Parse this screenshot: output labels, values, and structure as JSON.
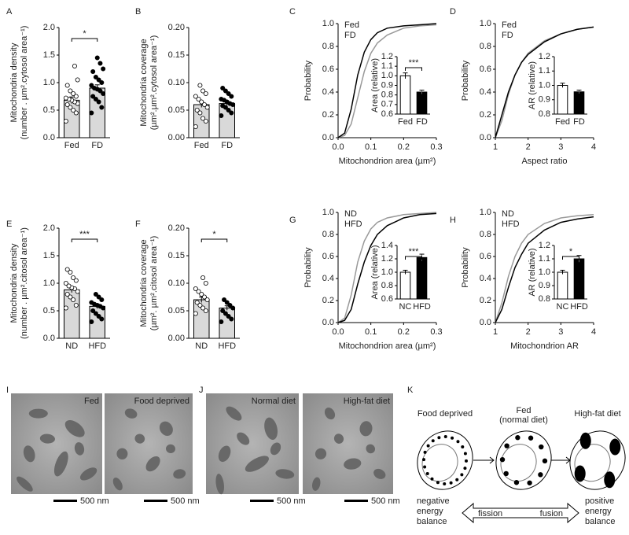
{
  "panel_labels": [
    "A",
    "B",
    "C",
    "D",
    "E",
    "F",
    "G",
    "H",
    "I",
    "J",
    "K"
  ],
  "chart_data": [
    {
      "type": "bar",
      "ylabel": [
        "Mitochondria density",
        "(number . µm².cytosol area⁻¹)"
      ],
      "categories": [
        "Fed",
        "FD"
      ],
      "values": [
        0.68,
        0.9
      ],
      "errors": [
        0.06,
        0.06
      ],
      "colors": [
        "#d9d9d9",
        "#d9d9d9"
      ],
      "point_fills": [
        "#ffffff",
        "#000000"
      ],
      "points": [
        [
          0.3,
          0.45,
          0.5,
          0.55,
          0.6,
          0.62,
          0.65,
          0.68,
          0.7,
          0.72,
          0.75,
          0.8,
          0.85,
          0.95,
          1.05,
          1.3
        ],
        [
          0.45,
          0.55,
          0.65,
          0.7,
          0.75,
          0.8,
          0.85,
          0.88,
          0.9,
          0.95,
          1.0,
          1.05,
          1.1,
          1.2,
          1.25,
          1.35,
          1.45
        ]
      ],
      "ylim": [
        0,
        2
      ],
      "yticks": [
        {
          "value": 0,
          "label": "0.0"
        },
        0.5,
        {
          "value": 1,
          "label": "1.0"
        },
        1.5,
        {
          "value": 2,
          "label": "2.0"
        }
      ],
      "annotation": "*"
    },
    {
      "type": "bar",
      "ylabel": [
        "Mitochondria coverage",
        "(µm².µm².cytosol area⁻¹)"
      ],
      "categories": [
        "Fed",
        "FD"
      ],
      "values": [
        0.06,
        0.062
      ],
      "errors": [
        0.005,
        0.003
      ],
      "colors": [
        "#d9d9d9",
        "#d9d9d9"
      ],
      "point_fills": [
        "#ffffff",
        "#000000"
      ],
      "points": [
        [
          0.02,
          0.03,
          0.035,
          0.045,
          0.05,
          0.055,
          0.06,
          0.065,
          0.07,
          0.075,
          0.08,
          0.085,
          0.095
        ],
        [
          0.04,
          0.045,
          0.05,
          0.055,
          0.058,
          0.06,
          0.062,
          0.065,
          0.068,
          0.07,
          0.075,
          0.08,
          0.085,
          0.09
        ]
      ],
      "ylim": [
        0,
        0.2
      ],
      "yticks": [
        {
          "value": 0,
          "label": "0.00"
        },
        0.05,
        {
          "value": 0.1,
          "label": "0.10"
        },
        0.15,
        {
          "value": 0.2,
          "label": "0.20"
        }
      ]
    },
    {
      "type": "line",
      "ylabel": [
        "Probability"
      ],
      "xlabel": "Mitochondrion area (µm²)",
      "x": [
        0,
        0.02,
        0.04,
        0.06,
        0.08,
        0.1,
        0.12,
        0.15,
        0.2,
        0.25,
        0.3
      ],
      "series": [
        {
          "name": "Fed",
          "color": "#999999",
          "values": [
            0,
            0.02,
            0.12,
            0.35,
            0.58,
            0.74,
            0.83,
            0.9,
            0.96,
            0.98,
            0.99
          ]
        },
        {
          "name": "FD",
          "color": "#000000",
          "values": [
            0,
            0.04,
            0.25,
            0.55,
            0.75,
            0.86,
            0.92,
            0.96,
            0.98,
            0.99,
            1.0
          ]
        }
      ],
      "xlim": [
        0,
        0.3
      ],
      "xticks": [
        {
          "value": 0,
          "label": "0.0"
        },
        0.1,
        0.2,
        0.3
      ],
      "ylim": [
        0,
        1
      ],
      "yticks": [
        {
          "value": 0,
          "label": "0.0"
        },
        0.2,
        0.4,
        0.6,
        0.8,
        {
          "value": 1,
          "label": "1.0"
        }
      ],
      "inset": {
        "type": "bar",
        "ylabel": [
          "Area (relative)"
        ],
        "categories": [
          "Fed",
          "FD"
        ],
        "values": [
          1.0,
          0.83
        ],
        "errors": [
          0.03,
          0.02
        ],
        "colors": [
          "#ffffff",
          "#000000"
        ],
        "ylim": [
          0.6,
          1.2
        ],
        "yticks": [
          0.6,
          0.7,
          0.8,
          0.9,
          {
            "value": 1,
            "label": "1.0"
          },
          1.1,
          1.2
        ],
        "annotation": "***"
      }
    },
    {
      "type": "line",
      "ylabel": [
        "Probability"
      ],
      "xlabel": "Aspect ratio",
      "x": [
        1,
        1.2,
        1.4,
        1.6,
        1.8,
        2,
        2.5,
        3,
        3.5,
        4
      ],
      "series": [
        {
          "name": "Fed",
          "color": "#999999",
          "values": [
            0,
            0.15,
            0.38,
            0.55,
            0.66,
            0.74,
            0.85,
            0.91,
            0.95,
            0.97
          ]
        },
        {
          "name": "FD",
          "color": "#000000",
          "values": [
            0,
            0.2,
            0.4,
            0.55,
            0.66,
            0.73,
            0.84,
            0.91,
            0.95,
            0.97
          ]
        }
      ],
      "xlim": [
        1,
        4
      ],
      "xticks": [
        1,
        2,
        3,
        4
      ],
      "ylim": [
        0,
        1
      ],
      "yticks": [
        {
          "value": 0,
          "label": "0.0"
        },
        0.2,
        0.4,
        0.6,
        0.8,
        {
          "value": 1,
          "label": "1.0"
        }
      ],
      "inset": {
        "type": "bar",
        "ylabel": [
          "AR (relative)"
        ],
        "categories": [
          "Fed",
          "FD"
        ],
        "values": [
          1.0,
          0.955
        ],
        "errors": [
          0.015,
          0.012
        ],
        "colors": [
          "#ffffff",
          "#000000"
        ],
        "ylim": [
          0.8,
          1.2
        ],
        "yticks": [
          0.8,
          0.9,
          {
            "value": 1,
            "label": "1.0"
          },
          1.1,
          1.2
        ]
      }
    },
    {
      "type": "bar",
      "ylabel": [
        "Mitochondria density",
        "(number . µm².citosol area⁻¹)"
      ],
      "categories": [
        "ND",
        "HFD"
      ],
      "values": [
        0.88,
        0.58
      ],
      "errors": [
        0.05,
        0.04
      ],
      "colors": [
        "#d9d9d9",
        "#d9d9d9"
      ],
      "point_fills": [
        "#ffffff",
        "#000000"
      ],
      "points": [
        [
          0.55,
          0.6,
          0.7,
          0.75,
          0.8,
          0.85,
          0.9,
          0.92,
          0.95,
          1.0,
          1.05,
          1.1,
          1.2,
          1.25
        ],
        [
          0.3,
          0.35,
          0.4,
          0.45,
          0.5,
          0.55,
          0.58,
          0.6,
          0.62,
          0.65,
          0.7,
          0.75,
          0.8
        ]
      ],
      "ylim": [
        0,
        2
      ],
      "yticks": [
        {
          "value": 0,
          "label": "0.0"
        },
        0.5,
        {
          "value": 1,
          "label": "1.0"
        },
        1.5,
        {
          "value": 2,
          "label": "2.0"
        }
      ],
      "annotation": "***"
    },
    {
      "type": "bar",
      "ylabel": [
        "Mitochondria coverage",
        "(µm². µm².citosol area⁻¹)"
      ],
      "categories": [
        "ND",
        "HFD"
      ],
      "values": [
        0.07,
        0.055
      ],
      "errors": [
        0.005,
        0.004
      ],
      "colors": [
        "#d9d9d9",
        "#d9d9d9"
      ],
      "point_fills": [
        "#ffffff",
        "#000000"
      ],
      "points": [
        [
          0.045,
          0.05,
          0.055,
          0.06,
          0.065,
          0.07,
          0.075,
          0.08,
          0.085,
          0.09,
          0.1,
          0.11
        ],
        [
          0.03,
          0.035,
          0.04,
          0.045,
          0.05,
          0.055,
          0.06,
          0.065,
          0.07
        ]
      ],
      "ylim": [
        0,
        0.2
      ],
      "yticks": [
        {
          "value": 0,
          "label": "0.00"
        },
        0.05,
        {
          "value": 0.1,
          "label": "0.10"
        },
        0.15,
        {
          "value": 0.2,
          "label": "0.20"
        }
      ],
      "annotation": "*"
    },
    {
      "type": "line",
      "ylabel": [
        "Probability"
      ],
      "xlabel": "Mitochondrion area (µm²)",
      "x": [
        0,
        0.02,
        0.04,
        0.06,
        0.08,
        0.1,
        0.12,
        0.15,
        0.2,
        0.25,
        0.3
      ],
      "series": [
        {
          "name": "ND",
          "color": "#999999",
          "values": [
            0,
            0.04,
            0.25,
            0.55,
            0.74,
            0.85,
            0.91,
            0.95,
            0.98,
            0.99,
            1.0
          ]
        },
        {
          "name": "HFD",
          "color": "#000000",
          "values": [
            0,
            0.02,
            0.12,
            0.35,
            0.55,
            0.7,
            0.8,
            0.88,
            0.95,
            0.98,
            0.99
          ]
        }
      ],
      "xlim": [
        0,
        0.3
      ],
      "xticks": [
        {
          "value": 0,
          "label": "0.0"
        },
        0.1,
        0.2,
        0.3
      ],
      "ylim": [
        0,
        1
      ],
      "yticks": [
        {
          "value": 0,
          "label": "0.0"
        },
        0.2,
        0.4,
        0.6,
        0.8,
        {
          "value": 1,
          "label": "1.0"
        }
      ],
      "inset": {
        "type": "bar",
        "ylabel": [
          "Area (relative)"
        ],
        "categories": [
          "NC",
          "HFD"
        ],
        "values": [
          1.0,
          1.22
        ],
        "errors": [
          0.03,
          0.05
        ],
        "colors": [
          "#ffffff",
          "#000000"
        ],
        "ylim": [
          0.6,
          1.4
        ],
        "yticks": [
          0.6,
          0.8,
          {
            "value": 1,
            "label": "1.0"
          },
          1.2,
          1.4
        ],
        "annotation": "***"
      }
    },
    {
      "type": "line",
      "ylabel": [
        "Probability"
      ],
      "xlabel": "Mitochondrion AR",
      "x": [
        1,
        1.2,
        1.4,
        1.6,
        1.8,
        2,
        2.5,
        3,
        3.5,
        4
      ],
      "series": [
        {
          "name": "ND",
          "color": "#999999",
          "values": [
            0,
            0.18,
            0.42,
            0.6,
            0.72,
            0.8,
            0.9,
            0.95,
            0.97,
            0.98
          ]
        },
        {
          "name": "HFD",
          "color": "#000000",
          "values": [
            0,
            0.12,
            0.32,
            0.5,
            0.62,
            0.72,
            0.84,
            0.91,
            0.94,
            0.96
          ]
        }
      ],
      "xlim": [
        1,
        4
      ],
      "xticks": [
        1,
        2,
        3,
        4
      ],
      "ylim": [
        0,
        1
      ],
      "yticks": [
        {
          "value": 0,
          "label": "0.0"
        },
        0.2,
        0.4,
        0.6,
        0.8,
        {
          "value": 1,
          "label": "1.0"
        }
      ],
      "inset": {
        "type": "bar",
        "ylabel": [
          "AR (relative)"
        ],
        "categories": [
          "NC",
          "HFD"
        ],
        "values": [
          1.0,
          1.1
        ],
        "errors": [
          0.015,
          0.025
        ],
        "colors": [
          "#ffffff",
          "#000000"
        ],
        "ylim": [
          0.8,
          1.2
        ],
        "yticks": [
          0.8,
          0.9,
          {
            "value": 1,
            "label": "1.0"
          },
          1.1,
          1.2
        ],
        "annotation": "*"
      }
    }
  ],
  "micrographs": [
    {
      "label": "Fed",
      "scale": "500 nm"
    },
    {
      "label": "Food deprived",
      "scale": "500 nm"
    },
    {
      "label": "Normal diet",
      "scale": "500 nm"
    },
    {
      "label": "High-fat diet",
      "scale": "500 nm"
    }
  ],
  "diagram": {
    "states": [
      [
        "Food deprived"
      ],
      [
        "Fed",
        "(normal diet)"
      ],
      [
        "High-fat diet"
      ]
    ],
    "left": [
      "negative",
      "energy",
      "balance"
    ],
    "right": [
      "positive",
      "energy",
      "balance"
    ],
    "arrow_left": "fission",
    "arrow_right": "fusion"
  }
}
